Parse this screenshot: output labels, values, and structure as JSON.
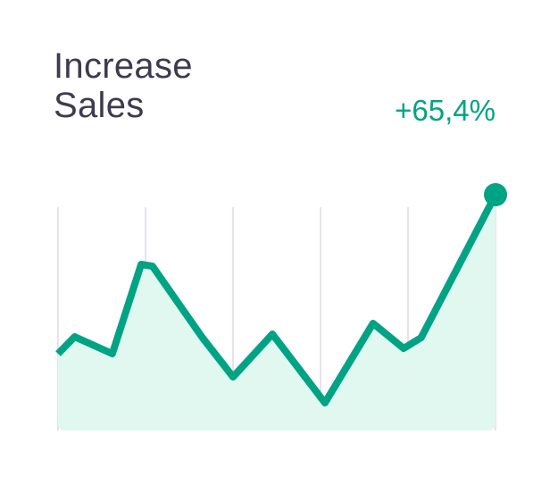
{
  "card": {
    "title_line1": "Increase",
    "title_line2": "Sales",
    "change": "+65,4%"
  },
  "colors": {
    "line": "#00a383",
    "fill": "#e0f8ef",
    "grid": "#e3e4ec",
    "title": "#3d3b4f"
  },
  "chart_data": {
    "type": "area",
    "title": "Increase Sales",
    "xlim": [
      0,
      5
    ],
    "ylim": [
      0,
      270
    ],
    "grid": "vertical",
    "gridlines_x": [
      0,
      1,
      2,
      3,
      4,
      5
    ],
    "points": [
      [
        0,
        86
      ],
      [
        0.19,
        105
      ],
      [
        0.62,
        86
      ],
      [
        0.95,
        186
      ],
      [
        1.08,
        184
      ],
      [
        1.65,
        104
      ],
      [
        2.0,
        60
      ],
      [
        2.45,
        108
      ],
      [
        3.05,
        31
      ],
      [
        3.6,
        120
      ],
      [
        3.95,
        92
      ],
      [
        4.15,
        104
      ],
      [
        5.0,
        264
      ]
    ],
    "end_marker": true
  }
}
